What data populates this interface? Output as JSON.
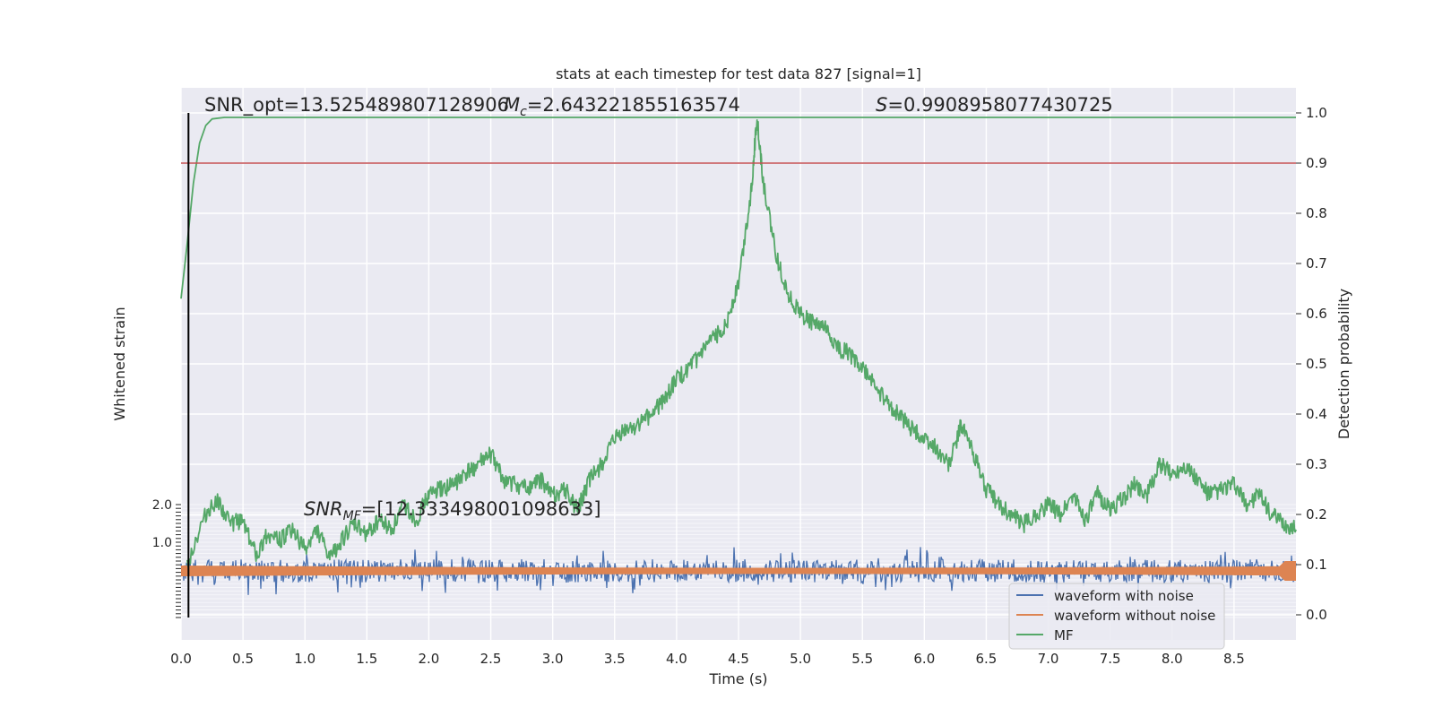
{
  "chart_data": {
    "type": "line",
    "title": "stats at each timestep for test data 827 [signal=1]",
    "xlabel": "Time (s)",
    "ylabel_left": "Whitened strain",
    "ylabel_right": "Detection probability",
    "xlim": [
      0,
      9
    ],
    "ylim_right": [
      -0.05,
      1.05
    ],
    "ylim_left": [
      -1.0,
      2.0
    ],
    "x_ticks": [
      "0.0",
      "0.5",
      "1.0",
      "1.5",
      "2.0",
      "2.5",
      "3.0",
      "3.5",
      "4.0",
      "4.5",
      "5.0",
      "5.5",
      "6.0",
      "6.5",
      "7.0",
      "7.5",
      "8.0",
      "8.5"
    ],
    "y_right_ticks": [
      "0.0",
      "0.1",
      "0.2",
      "0.3",
      "0.4",
      "0.5",
      "0.6",
      "0.7",
      "0.8",
      "0.9",
      "1.0"
    ],
    "y_left_ticks": [
      "2.0",
      "1.0"
    ],
    "grid": true,
    "threshold": 0.9,
    "threshold_color": "#c44e52",
    "event_time": 0.06,
    "annotations": {
      "snr_opt": "SNR_opt=13.525489807128906",
      "mc_symbol": "M",
      "mc_sub": "c",
      "mc_value": "=2.643221855163574",
      "s_symbol": "S",
      "s_value": "=0.9908958077430725",
      "snr_mf_symbol": "SNR",
      "snr_mf_sub": "MF",
      "snr_mf_value": "=[12.333498001098633]"
    },
    "legend": {
      "placement": "lower-right",
      "entries": [
        "waveform with noise",
        "waveform without noise",
        "MF"
      ]
    },
    "series": [
      {
        "name": "waveform with noise",
        "color": "#4c72b0",
        "axis": "left",
        "x": [
          0.0,
          9.0
        ],
        "y": [
          0.0,
          0.0
        ],
        "note_range": [
          -0.45,
          0.45
        ]
      },
      {
        "name": "waveform without noise",
        "color": "#dd8452",
        "axis": "left",
        "x": [
          0.0,
          9.0
        ],
        "y": [
          0.0,
          0.0
        ]
      },
      {
        "name": "MF",
        "color": "#55a868",
        "axis": "right",
        "x": [
          0.0,
          0.05,
          0.1,
          0.15,
          0.2,
          0.25,
          0.35,
          0.5,
          9.0
        ],
        "y": [
          0.63,
          0.74,
          0.86,
          0.94,
          0.975,
          0.988,
          0.991,
          0.991,
          0.991
        ]
      },
      {
        "name": "",
        "color": "#55a868",
        "axis": "right",
        "x": [
          0.05,
          0.2,
          0.3,
          0.4,
          0.5,
          0.6,
          0.7,
          0.8,
          0.9,
          1.0,
          1.1,
          1.2,
          1.3,
          1.4,
          1.5,
          1.6,
          1.7,
          1.8,
          1.9,
          2.0,
          2.1,
          2.2,
          2.3,
          2.4,
          2.5,
          2.6,
          2.7,
          2.8,
          2.9,
          3.0,
          3.1,
          3.2,
          3.3,
          3.4,
          3.5,
          3.6,
          3.7,
          3.8,
          3.9,
          4.0,
          4.1,
          4.2,
          4.3,
          4.4,
          4.5,
          4.6,
          4.65,
          4.7,
          4.8,
          4.9,
          5.0,
          5.1,
          5.2,
          5.3,
          5.4,
          5.5,
          5.6,
          5.7,
          5.8,
          5.9,
          6.0,
          6.1,
          6.2,
          6.3,
          6.4,
          6.5,
          6.6,
          6.7,
          6.8,
          6.9,
          7.0,
          7.1,
          7.2,
          7.3,
          7.4,
          7.5,
          7.6,
          7.7,
          7.8,
          7.9,
          8.0,
          8.1,
          8.2,
          8.3,
          8.4,
          8.5,
          8.6,
          8.7,
          8.8,
          8.9,
          9.0
        ],
        "y": [
          0.1,
          0.2,
          0.23,
          0.18,
          0.19,
          0.12,
          0.16,
          0.15,
          0.17,
          0.13,
          0.17,
          0.11,
          0.15,
          0.18,
          0.16,
          0.19,
          0.17,
          0.22,
          0.19,
          0.24,
          0.25,
          0.26,
          0.28,
          0.3,
          0.32,
          0.27,
          0.26,
          0.25,
          0.27,
          0.24,
          0.25,
          0.21,
          0.27,
          0.3,
          0.35,
          0.37,
          0.38,
          0.4,
          0.43,
          0.47,
          0.49,
          0.52,
          0.55,
          0.58,
          0.66,
          0.84,
          0.99,
          0.86,
          0.72,
          0.64,
          0.6,
          0.58,
          0.57,
          0.53,
          0.52,
          0.49,
          0.46,
          0.42,
          0.4,
          0.37,
          0.35,
          0.33,
          0.3,
          0.38,
          0.32,
          0.25,
          0.22,
          0.2,
          0.18,
          0.2,
          0.22,
          0.2,
          0.24,
          0.19,
          0.24,
          0.21,
          0.23,
          0.26,
          0.24,
          0.3,
          0.28,
          0.3,
          0.27,
          0.24,
          0.25,
          0.26,
          0.22,
          0.24,
          0.2,
          0.18,
          0.17
        ]
      }
    ]
  }
}
